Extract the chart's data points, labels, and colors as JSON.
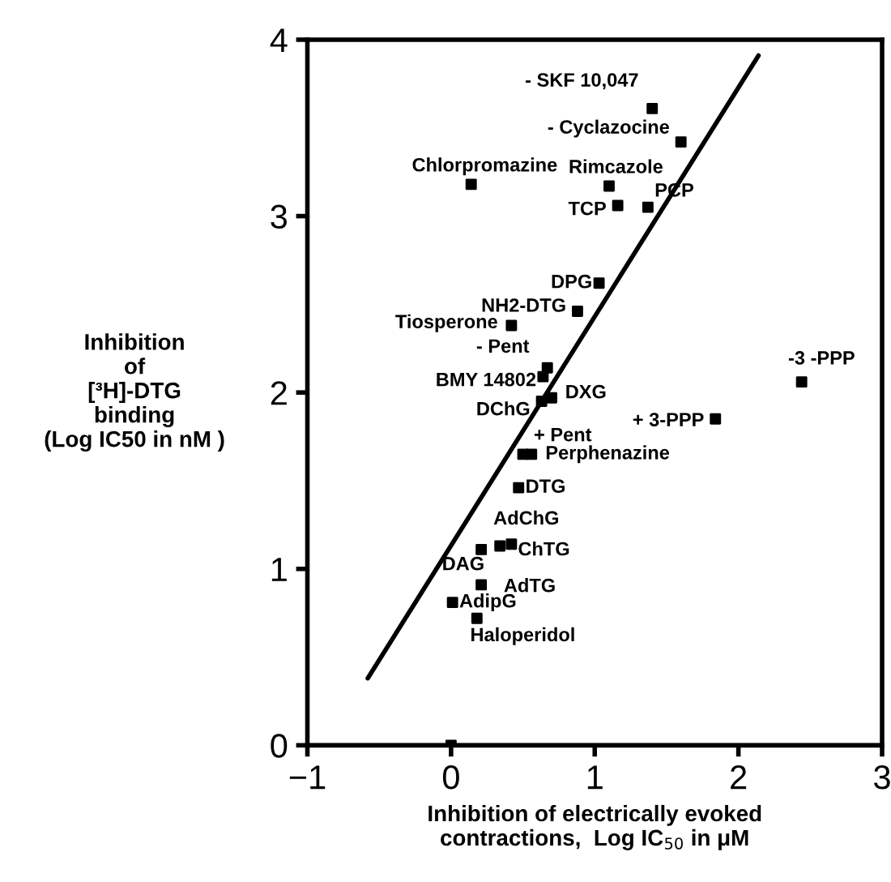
{
  "chart_data": {
    "type": "scatter",
    "xlabel": "Inhibition of electrically evoked\ncontractions,  Log IC$_{50}$ in μM",
    "ylabel": "Inhibition\nof\n[³H]-DTG\nbinding\n(Log IC50 in nM )",
    "xlim": [
      -1,
      3
    ],
    "ylim": [
      0,
      4
    ],
    "xticks": [
      {
        "value": -1,
        "label": "−1"
      },
      0,
      1,
      2,
      3
    ],
    "yticks": [
      0,
      1,
      2,
      3,
      4
    ],
    "grid": false,
    "marker": "square",
    "series": [
      {
        "color": "#000000",
        "x": [
          1.4,
          1.6,
          0.14,
          1.1,
          1.16,
          1.37,
          1.03,
          0.88,
          0.42,
          0.67,
          0.64,
          0.63,
          0.7,
          0.56,
          0.5,
          0.47,
          0.42,
          0.34,
          0.21,
          0.21,
          0.01,
          0.18,
          0.0,
          2.44,
          1.84
        ],
        "values": [
          3.61,
          3.42,
          3.18,
          3.17,
          3.06,
          3.05,
          2.62,
          2.46,
          2.38,
          2.14,
          2.09,
          1.95,
          1.97,
          1.65,
          1.65,
          1.46,
          1.14,
          1.13,
          1.11,
          0.91,
          0.81,
          0.72,
          0.0,
          2.06,
          1.85
        ]
      },
      {
        "type": "line",
        "color": "#000000",
        "line_style": "solid",
        "marker": "none",
        "x": [
          -0.58,
          2.14
        ],
        "values": [
          0.38,
          3.91
        ]
      }
    ],
    "annotations": [
      {
        "text": "- SKF 10,047",
        "x": 1.4,
        "y": 3.61
      },
      {
        "text": "- Cyclazocine",
        "x": 1.6,
        "y": 3.42
      },
      {
        "text": "Chlorpromazine",
        "x": 0.14,
        "y": 3.18
      },
      {
        "text": "Rimcazole",
        "x": 1.1,
        "y": 3.17
      },
      {
        "text": "TCP",
        "x": 1.16,
        "y": 3.06
      },
      {
        "text": "PCP",
        "x": 1.37,
        "y": 3.05
      },
      {
        "text": "DPG",
        "x": 1.03,
        "y": 2.62
      },
      {
        "text": "NH2-DTG",
        "x": 0.88,
        "y": 2.46
      },
      {
        "text": "Tiosperone",
        "x": 0.42,
        "y": 2.38
      },
      {
        "text": "- Pent",
        "x": 0.67,
        "y": 2.14
      },
      {
        "text": "BMY 14802",
        "x": 0.64,
        "y": 2.09
      },
      {
        "text": "DChG",
        "x": 0.63,
        "y": 1.95
      },
      {
        "text": "DXG",
        "x": 0.7,
        "y": 1.97
      },
      {
        "text": "+ Pent",
        "x": 0.56,
        "y": 1.65
      },
      {
        "text": "Perphenazine",
        "x": 0.5,
        "y": 1.65
      },
      {
        "text": "DTG",
        "x": 0.47,
        "y": 1.46
      },
      {
        "text": "AdChG",
        "x": 0.42,
        "y": 1.14
      },
      {
        "text": "ChTG",
        "x": 0.34,
        "y": 1.13
      },
      {
        "text": "DAG",
        "x": 0.21,
        "y": 1.11
      },
      {
        "text": "AdTG",
        "x": 0.21,
        "y": 0.91
      },
      {
        "text": "AdipG",
        "x": 0.01,
        "y": 0.81
      },
      {
        "text": "Haloperidol",
        "x": 0.18,
        "y": 0.72
      },
      {
        "text": "-3 -PPP",
        "x": 2.44,
        "y": 2.06
      },
      {
        "text": "+ 3-PPP",
        "x": 1.84,
        "y": 1.85
      }
    ]
  }
}
